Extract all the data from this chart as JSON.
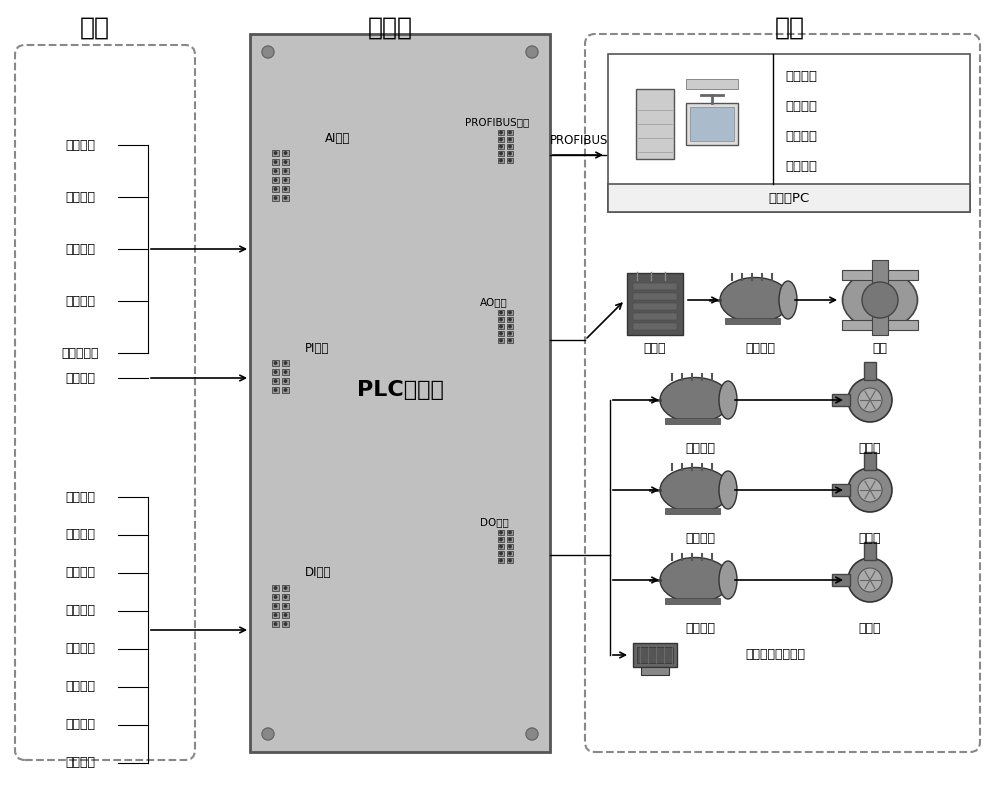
{
  "title_input": "输入",
  "title_lower": "下位机",
  "title_output": "输出",
  "input_labels_group1": [
    "油箱油位",
    "油液温度",
    "油液流量",
    "油液压力",
    "油液污染度"
  ],
  "input_labels_group2": [
    "电机转速"
  ],
  "input_labels_group3": [
    "调压开关",
    "净油开关",
    "供压开关",
    "加油开关",
    "补油开关",
    "清洗开关",
    "取样开关",
    "自洁开关"
  ],
  "plc_label": "PLC控制器",
  "ai_label": "AI接口",
  "pi_label": "PI接口",
  "di_label": "DI接口",
  "profibus_port_label": "PROFIBUS接口",
  "ao_label": "AO接口",
  "do_label": "DO接口",
  "profibus_label": "PROFIBUS",
  "upper_pc_label": "上位机PC",
  "pc_menu": [
    "参数设置",
    "数据显示",
    "模式切换",
    "工况监测"
  ],
  "output_row1": [
    "变频器",
    "主泵电机",
    "主泵"
  ],
  "output_row2": [
    "加油电机",
    "加油泵"
  ],
  "output_row3": [
    "补油电机",
    "补油泵"
  ],
  "output_row4": [
    "净油电机",
    "净油泵"
  ],
  "output_row5": "调压、换向电磁阀",
  "plc_bg": "#c8c8c8",
  "white": "#ffffff",
  "light_gray": "#e8e8e8",
  "mid_gray": "#aaaaaa",
  "dark_gray": "#555555",
  "border_dash": "#777777"
}
